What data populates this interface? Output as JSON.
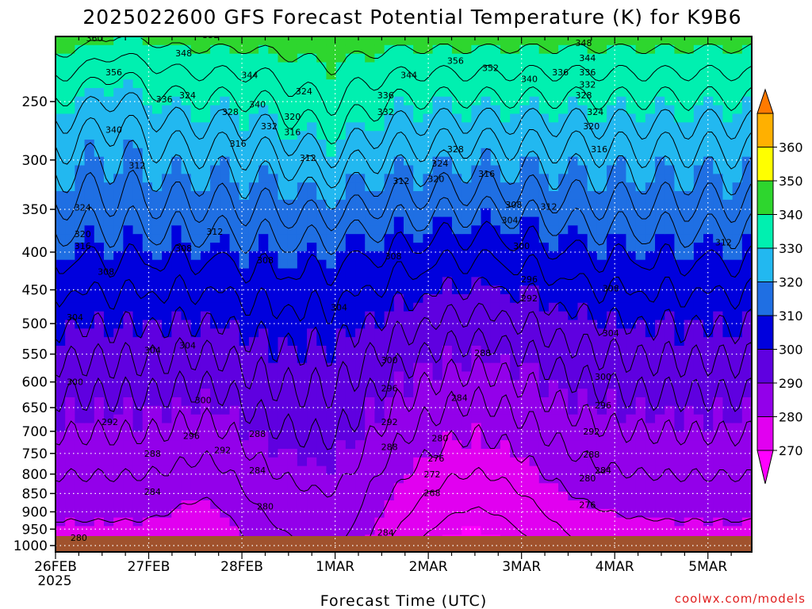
{
  "chart_data": {
    "type": "heatmap",
    "title": "2025022600 GFS Forecast Potential Temperature (K) for K9B6",
    "xlabel": "Forecast Time (UTC)",
    "ylabel": "",
    "credit": "coolwx.com/models",
    "x_tick_labels": [
      "26FEB",
      "27FEB",
      "28FEB",
      "1MAR",
      "2MAR",
      "3MAR",
      "4MAR",
      "5MAR"
    ],
    "x_year_label": "2025",
    "x_range_hours": [
      0,
      180
    ],
    "y_scale": "log-pressure",
    "y_range_hpa": [
      1000,
      200
    ],
    "y_tick_labels": [
      "250",
      "300",
      "350",
      "400",
      "450",
      "500",
      "550",
      "600",
      "650",
      "700",
      "750",
      "800",
      "850",
      "900",
      "950",
      "1000"
    ],
    "y_tick_values": [
      250,
      300,
      350,
      400,
      450,
      500,
      550,
      600,
      650,
      700,
      750,
      800,
      850,
      900,
      950,
      1000
    ],
    "grid": true,
    "colorbar": {
      "levels": [
        260,
        270,
        280,
        290,
        300,
        310,
        320,
        330,
        340,
        350,
        360,
        370
      ],
      "labels": [
        "270",
        "280",
        "290",
        "300",
        "310",
        "320",
        "330",
        "340",
        "350",
        "360"
      ],
      "colors": [
        "#ff00ff",
        "#e100f0",
        "#9300ea",
        "#5f00e0",
        "#0000dd",
        "#1f6fe3",
        "#22b8f0",
        "#00f0b0",
        "#2ed62e",
        "#ffff00",
        "#ffb000",
        "#ff7a00"
      ]
    },
    "contour_labels": [
      {
        "t": 10,
        "p": 205,
        "text": "360"
      },
      {
        "t": 15,
        "p": 228,
        "text": "356"
      },
      {
        "t": 33,
        "p": 215,
        "text": "348"
      },
      {
        "t": 40,
        "p": 203,
        "text": "352"
      },
      {
        "t": 50,
        "p": 230,
        "text": "344"
      },
      {
        "t": 52,
        "p": 252,
        "text": "340"
      },
      {
        "t": 45,
        "p": 258,
        "text": "328"
      },
      {
        "t": 28,
        "p": 248,
        "text": "336"
      },
      {
        "t": 34,
        "p": 245,
        "text": "324"
      },
      {
        "t": 55,
        "p": 270,
        "text": "332"
      },
      {
        "t": 61,
        "p": 262,
        "text": "320"
      },
      {
        "t": 64,
        "p": 242,
        "text": "324"
      },
      {
        "t": 61,
        "p": 275,
        "text": "316"
      },
      {
        "t": 15,
        "p": 273,
        "text": "340"
      },
      {
        "t": 47,
        "p": 285,
        "text": "316"
      },
      {
        "t": 65,
        "p": 298,
        "text": "312"
      },
      {
        "t": 21,
        "p": 305,
        "text": "312"
      },
      {
        "t": 7,
        "p": 348,
        "text": "324"
      },
      {
        "t": 7,
        "p": 378,
        "text": "320"
      },
      {
        "t": 7,
        "p": 392,
        "text": "316"
      },
      {
        "t": 41,
        "p": 375,
        "text": "312"
      },
      {
        "t": 33,
        "p": 395,
        "text": "308"
      },
      {
        "t": 54,
        "p": 410,
        "text": "308"
      },
      {
        "t": 13,
        "p": 425,
        "text": "308"
      },
      {
        "t": 5,
        "p": 490,
        "text": "304"
      },
      {
        "t": 34,
        "p": 535,
        "text": "304"
      },
      {
        "t": 73,
        "p": 475,
        "text": "304"
      },
      {
        "t": 89,
        "p": 320,
        "text": "312"
      },
      {
        "t": 87,
        "p": 405,
        "text": "308"
      },
      {
        "t": 85,
        "p": 245,
        "text": "336"
      },
      {
        "t": 85,
        "p": 258,
        "text": "332"
      },
      {
        "t": 91,
        "p": 230,
        "text": "344"
      },
      {
        "t": 103,
        "p": 220,
        "text": "356"
      },
      {
        "t": 112,
        "p": 225,
        "text": "352"
      },
      {
        "t": 103,
        "p": 290,
        "text": "328"
      },
      {
        "t": 99,
        "p": 303,
        "text": "324"
      },
      {
        "t": 98,
        "p": 318,
        "text": "320"
      },
      {
        "t": 111,
        "p": 313,
        "text": "316"
      },
      {
        "t": 118,
        "p": 345,
        "text": "308"
      },
      {
        "t": 117,
        "p": 362,
        "text": "304"
      },
      {
        "t": 120,
        "p": 392,
        "text": "300"
      },
      {
        "t": 122,
        "p": 435,
        "text": "296"
      },
      {
        "t": 122,
        "p": 462,
        "text": "292"
      },
      {
        "t": 127,
        "p": 347,
        "text": "312"
      },
      {
        "t": 122,
        "p": 233,
        "text": "340"
      },
      {
        "t": 130,
        "p": 228,
        "text": "336"
      },
      {
        "t": 136,
        "p": 208,
        "text": "348"
      },
      {
        "t": 137,
        "p": 218,
        "text": "344"
      },
      {
        "t": 137,
        "p": 228,
        "text": "336"
      },
      {
        "t": 137,
        "p": 237,
        "text": "332"
      },
      {
        "t": 136,
        "p": 245,
        "text": "328"
      },
      {
        "t": 139,
        "p": 258,
        "text": "324"
      },
      {
        "t": 138,
        "p": 270,
        "text": "320"
      },
      {
        "t": 140,
        "p": 290,
        "text": "316"
      },
      {
        "t": 172,
        "p": 388,
        "text": "312"
      },
      {
        "t": 143,
        "p": 448,
        "text": "308"
      },
      {
        "t": 143,
        "p": 515,
        "text": "304"
      },
      {
        "t": 141,
        "p": 590,
        "text": "300"
      },
      {
        "t": 141,
        "p": 645,
        "text": "296"
      },
      {
        "t": 138,
        "p": 700,
        "text": "292"
      },
      {
        "t": 138,
        "p": 752,
        "text": "288"
      },
      {
        "t": 141,
        "p": 790,
        "text": "284"
      },
      {
        "t": 137,
        "p": 810,
        "text": "280"
      },
      {
        "t": 137,
        "p": 880,
        "text": "276"
      },
      {
        "t": 110,
        "p": 548,
        "text": "288"
      },
      {
        "t": 104,
        "p": 630,
        "text": "284"
      },
      {
        "t": 99,
        "p": 715,
        "text": "280"
      },
      {
        "t": 98,
        "p": 762,
        "text": "276"
      },
      {
        "t": 97,
        "p": 800,
        "text": "272"
      },
      {
        "t": 97,
        "p": 848,
        "text": "268"
      },
      {
        "t": 86,
        "p": 560,
        "text": "300"
      },
      {
        "t": 86,
        "p": 612,
        "text": "296"
      },
      {
        "t": 86,
        "p": 680,
        "text": "292"
      },
      {
        "t": 86,
        "p": 735,
        "text": "288"
      },
      {
        "t": 85,
        "p": 960,
        "text": "284"
      },
      {
        "t": 5,
        "p": 600,
        "text": "300"
      },
      {
        "t": 14,
        "p": 680,
        "text": "292"
      },
      {
        "t": 25,
        "p": 750,
        "text": "288"
      },
      {
        "t": 25,
        "p": 845,
        "text": "284"
      },
      {
        "t": 6,
        "p": 975,
        "text": "280"
      },
      {
        "t": 25,
        "p": 543,
        "text": "304"
      },
      {
        "t": 38,
        "p": 635,
        "text": "300"
      },
      {
        "t": 35,
        "p": 710,
        "text": "296"
      },
      {
        "t": 43,
        "p": 742,
        "text": "292"
      },
      {
        "t": 52,
        "p": 705,
        "text": "288"
      },
      {
        "t": 52,
        "p": 790,
        "text": "284"
      },
      {
        "t": 54,
        "p": 885,
        "text": "280"
      }
    ]
  }
}
